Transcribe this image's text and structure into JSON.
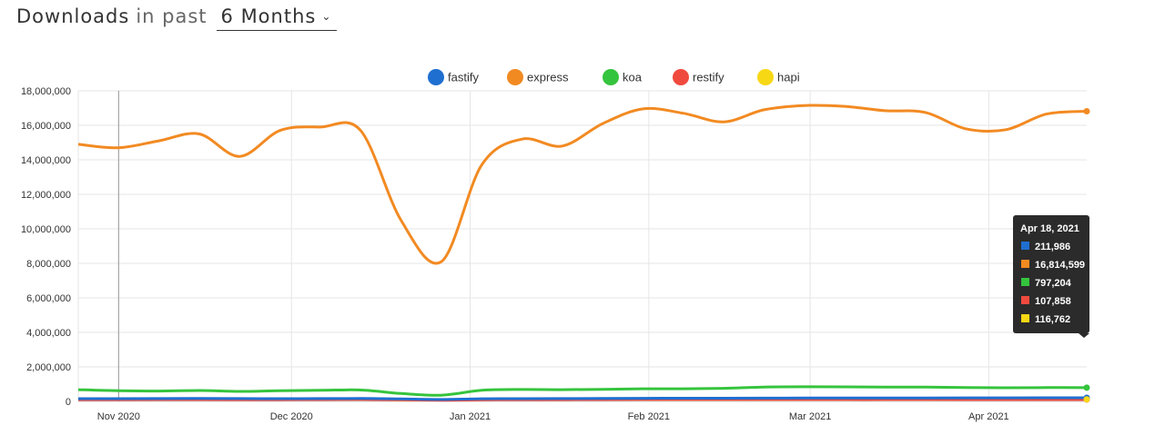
{
  "header": {
    "title_strong": "Downloads",
    "title_light": "in past",
    "period": "6 Months"
  },
  "icons": {
    "period_dropdown": "chevron-down-icon"
  },
  "chart_data": {
    "type": "line",
    "x_type": "date",
    "x_range": [
      "2020-10-25",
      "2021-04-18"
    ],
    "x_ticks": [
      {
        "date": "2020-11-01",
        "label": "Nov 2020"
      },
      {
        "date": "2020-12-01",
        "label": "Dec 2020"
      },
      {
        "date": "2021-01-01",
        "label": "Jan 2021"
      },
      {
        "date": "2021-02-01",
        "label": "Feb 2021"
      },
      {
        "date": "2021-03-01",
        "label": "Mar 2021"
      },
      {
        "date": "2021-04-01",
        "label": "Apr 2021"
      }
    ],
    "ylim": [
      0,
      18000000
    ],
    "y_ticks": [
      0,
      2000000,
      4000000,
      6000000,
      8000000,
      10000000,
      12000000,
      14000000,
      16000000,
      18000000
    ],
    "y_tick_labels": [
      "0",
      "2,000,000",
      "4,000,000",
      "6,000,000",
      "8,000,000",
      "10,000,000",
      "12,000,000",
      "14,000,000",
      "16,000,000",
      "18,000,000"
    ],
    "grid": true,
    "legend_position": "top-center",
    "x": [
      "2020-10-25",
      "2020-11-01",
      "2020-11-08",
      "2020-11-15",
      "2020-11-22",
      "2020-11-29",
      "2020-12-06",
      "2020-12-13",
      "2020-12-20",
      "2020-12-27",
      "2021-01-03",
      "2021-01-10",
      "2021-01-17",
      "2021-01-24",
      "2021-01-31",
      "2021-02-07",
      "2021-02-14",
      "2021-02-21",
      "2021-02-28",
      "2021-03-07",
      "2021-03-14",
      "2021-03-21",
      "2021-03-28",
      "2021-04-04",
      "2021-04-11",
      "2021-04-18"
    ],
    "series": [
      {
        "name": "fastify",
        "color": "#1f6fd1",
        "values": [
          160000,
          160000,
          165000,
          170000,
          165000,
          160000,
          165000,
          170000,
          140000,
          110000,
          150000,
          160000,
          165000,
          170000,
          180000,
          185000,
          185000,
          190000,
          195000,
          195000,
          200000,
          200000,
          205000,
          205000,
          210000,
          211986
        ]
      },
      {
        "name": "express",
        "color": "#f28a22",
        "values": [
          14900000,
          14700000,
          15100000,
          15500000,
          14200000,
          15700000,
          15900000,
          15700000,
          10500000,
          8100000,
          13700000,
          15200000,
          14800000,
          16100000,
          16950000,
          16700000,
          16200000,
          16900000,
          17150000,
          17100000,
          16850000,
          16750000,
          15800000,
          15750000,
          16650000,
          16814599
        ]
      },
      {
        "name": "koa",
        "color": "#35c43d",
        "values": [
          680000,
          620000,
          600000,
          630000,
          580000,
          620000,
          640000,
          660000,
          460000,
          360000,
          640000,
          690000,
          680000,
          700000,
          730000,
          730000,
          760000,
          830000,
          850000,
          840000,
          830000,
          830000,
          800000,
          790000,
          800000,
          797204
        ]
      },
      {
        "name": "restify",
        "color": "#f04a3e",
        "values": [
          100000,
          100000,
          105000,
          105000,
          100000,
          100000,
          105000,
          110000,
          90000,
          70000,
          95000,
          100000,
          100000,
          105000,
          110000,
          110000,
          108000,
          108000,
          110000,
          108000,
          108000,
          108000,
          105000,
          106000,
          107000,
          107858
        ]
      },
      {
        "name": "hapi",
        "color": "#f7d815",
        "values": [
          110000,
          110000,
          112000,
          115000,
          110000,
          112000,
          115000,
          118000,
          95000,
          80000,
          105000,
          110000,
          110000,
          112000,
          115000,
          115000,
          115000,
          116000,
          118000,
          117000,
          117000,
          116000,
          115000,
          116000,
          116000,
          116762
        ]
      }
    ],
    "tooltip": {
      "date": "Apr 18, 2021",
      "rows": [
        {
          "series": "fastify",
          "value": "211,986",
          "color": "#1f6fd1"
        },
        {
          "series": "express",
          "value": "16,814,599",
          "color": "#f28a22"
        },
        {
          "series": "koa",
          "value": "797,204",
          "color": "#35c43d"
        },
        {
          "series": "restify",
          "value": "107,858",
          "color": "#f04a3e"
        },
        {
          "series": "hapi",
          "value": "116,762",
          "color": "#f7d815"
        }
      ]
    }
  }
}
